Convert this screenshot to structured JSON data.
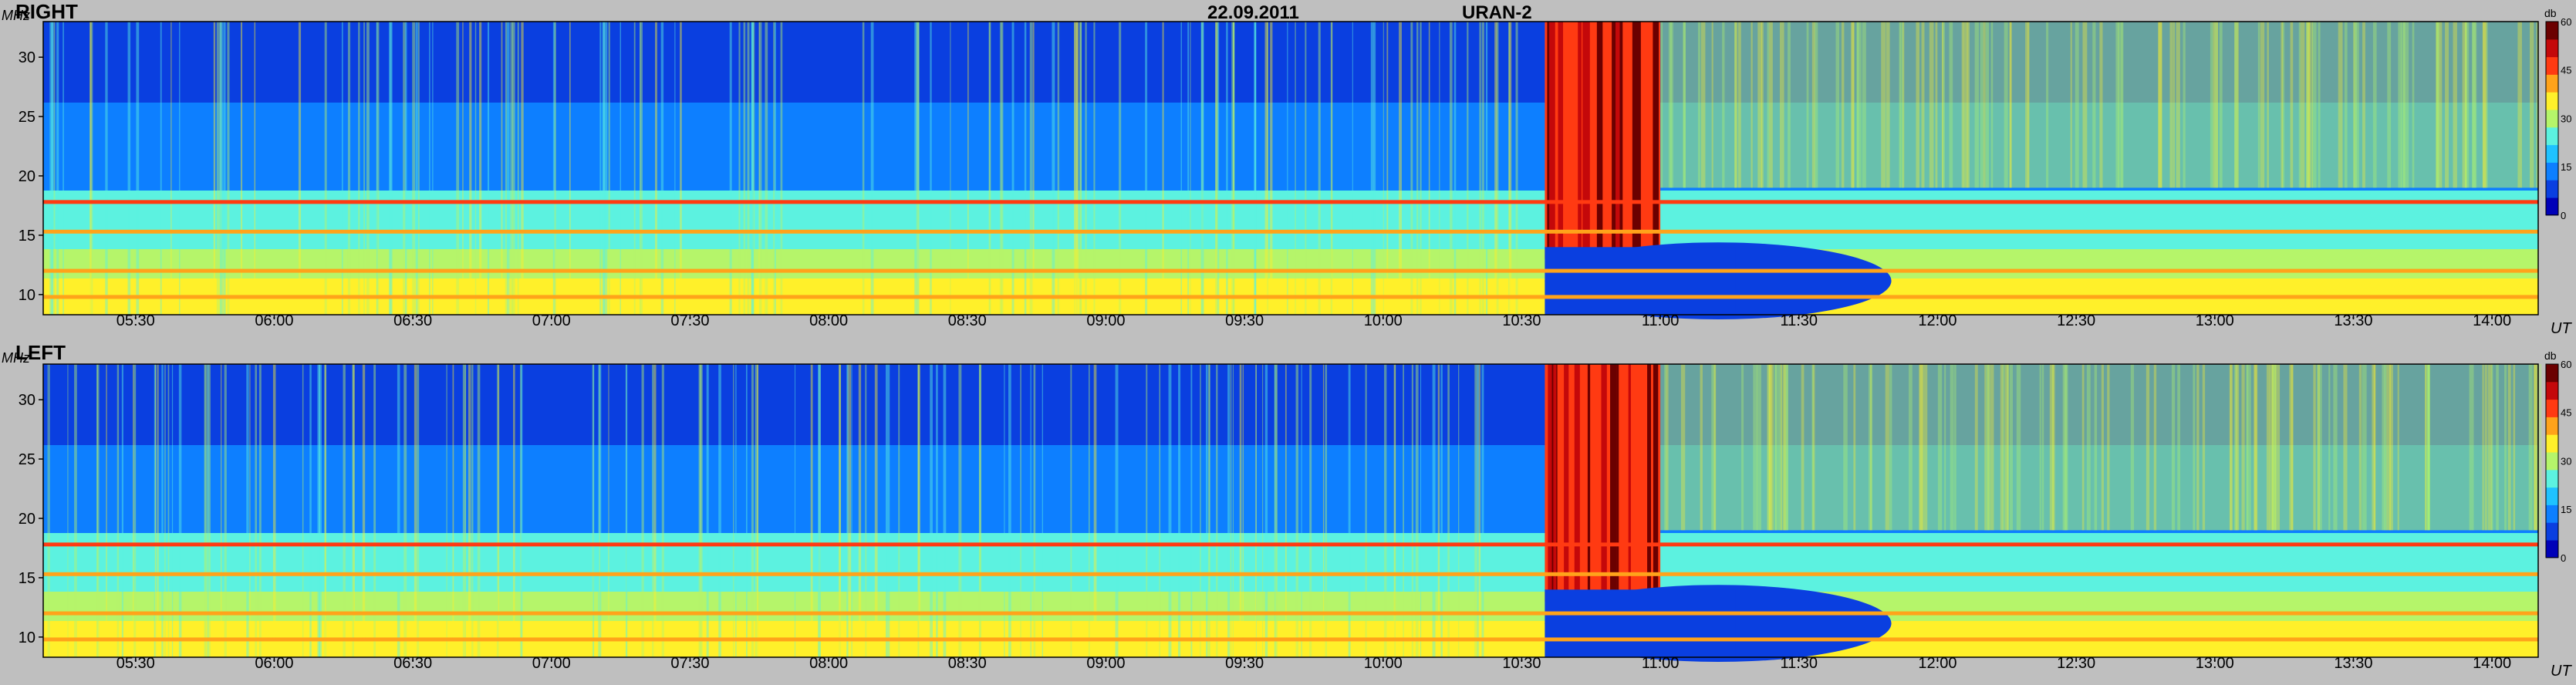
{
  "header": {
    "date": "22.09.2011",
    "instrument": "URAN-2"
  },
  "axis_units": {
    "frequency": "MHz",
    "time": "UT",
    "intensity": "db"
  },
  "colors": {
    "background": "#bfbfbf",
    "colormap": [
      "#0000b8",
      "#0a3fe0",
      "#0d7fff",
      "#1fc2ff",
      "#5cf2e0",
      "#b5f56a",
      "#fff02a",
      "#ffa31a",
      "#ff3a12",
      "#c4080a",
      "#6b0000"
    ]
  },
  "chart_data": [
    {
      "type": "heatmap",
      "title": "RIGHT",
      "xlabel": "UT",
      "ylabel": "MHz",
      "xlim": [
        "05:10",
        "14:10"
      ],
      "ylim": [
        8.3,
        33.0
      ],
      "x_ticks": [
        "05:30",
        "06:00",
        "06:30",
        "07:00",
        "07:30",
        "08:00",
        "08:30",
        "09:00",
        "09:30",
        "10:00",
        "10:30",
        "11:00",
        "11:30",
        "12:00",
        "12:30",
        "13:00",
        "13:30",
        "14:00"
      ],
      "y_ticks": [
        10,
        15,
        20,
        25,
        30
      ],
      "colorbar": {
        "label": "db",
        "range": [
          0,
          60
        ],
        "ticks": [
          0,
          15,
          30,
          45,
          60
        ]
      },
      "features": [
        {
          "name": "burst",
          "time_range": [
            "10:35",
            "11:00"
          ],
          "freq_range": [
            13,
            33
          ],
          "level_db": 52
        },
        {
          "name": "absorption",
          "time_range": [
            "10:35",
            "11:50"
          ],
          "freq_range": [
            8.3,
            14
          ],
          "level_db": 3
        },
        {
          "name": "interference-line",
          "freq": 17.8,
          "level_db": 48
        },
        {
          "name": "interference-line",
          "freq": 15.3,
          "level_db": 42
        },
        {
          "name": "interference-line",
          "freq": 12.0,
          "level_db": 40
        },
        {
          "name": "interference-line",
          "freq": 9.8,
          "level_db": 40
        }
      ],
      "grid": false,
      "legend": "right"
    },
    {
      "type": "heatmap",
      "title": "LEFT",
      "xlabel": "UT",
      "ylabel": "MHz",
      "xlim": [
        "05:10",
        "14:10"
      ],
      "ylim": [
        8.3,
        33.0
      ],
      "x_ticks": [
        "05:30",
        "06:00",
        "06:30",
        "07:00",
        "07:30",
        "08:00",
        "08:30",
        "09:00",
        "09:30",
        "10:00",
        "10:30",
        "11:00",
        "11:30",
        "12:00",
        "12:30",
        "13:00",
        "13:30",
        "14:00"
      ],
      "y_ticks": [
        10,
        15,
        20,
        25,
        30
      ],
      "colorbar": {
        "label": "db",
        "range": [
          0,
          60
        ],
        "ticks": [
          0,
          15,
          30,
          45,
          60
        ]
      },
      "features": [
        {
          "name": "burst",
          "time_range": [
            "10:35",
            "11:00"
          ],
          "freq_range": [
            13,
            33
          ],
          "level_db": 52
        },
        {
          "name": "absorption",
          "time_range": [
            "10:35",
            "11:50"
          ],
          "freq_range": [
            8.3,
            14
          ],
          "level_db": 3
        },
        {
          "name": "interference-line",
          "freq": 17.8,
          "level_db": 48
        },
        {
          "name": "interference-line",
          "freq": 15.3,
          "level_db": 42
        },
        {
          "name": "interference-line",
          "freq": 12.0,
          "level_db": 40
        },
        {
          "name": "interference-line",
          "freq": 9.8,
          "level_db": 40
        }
      ],
      "grid": false,
      "legend": "right"
    }
  ]
}
